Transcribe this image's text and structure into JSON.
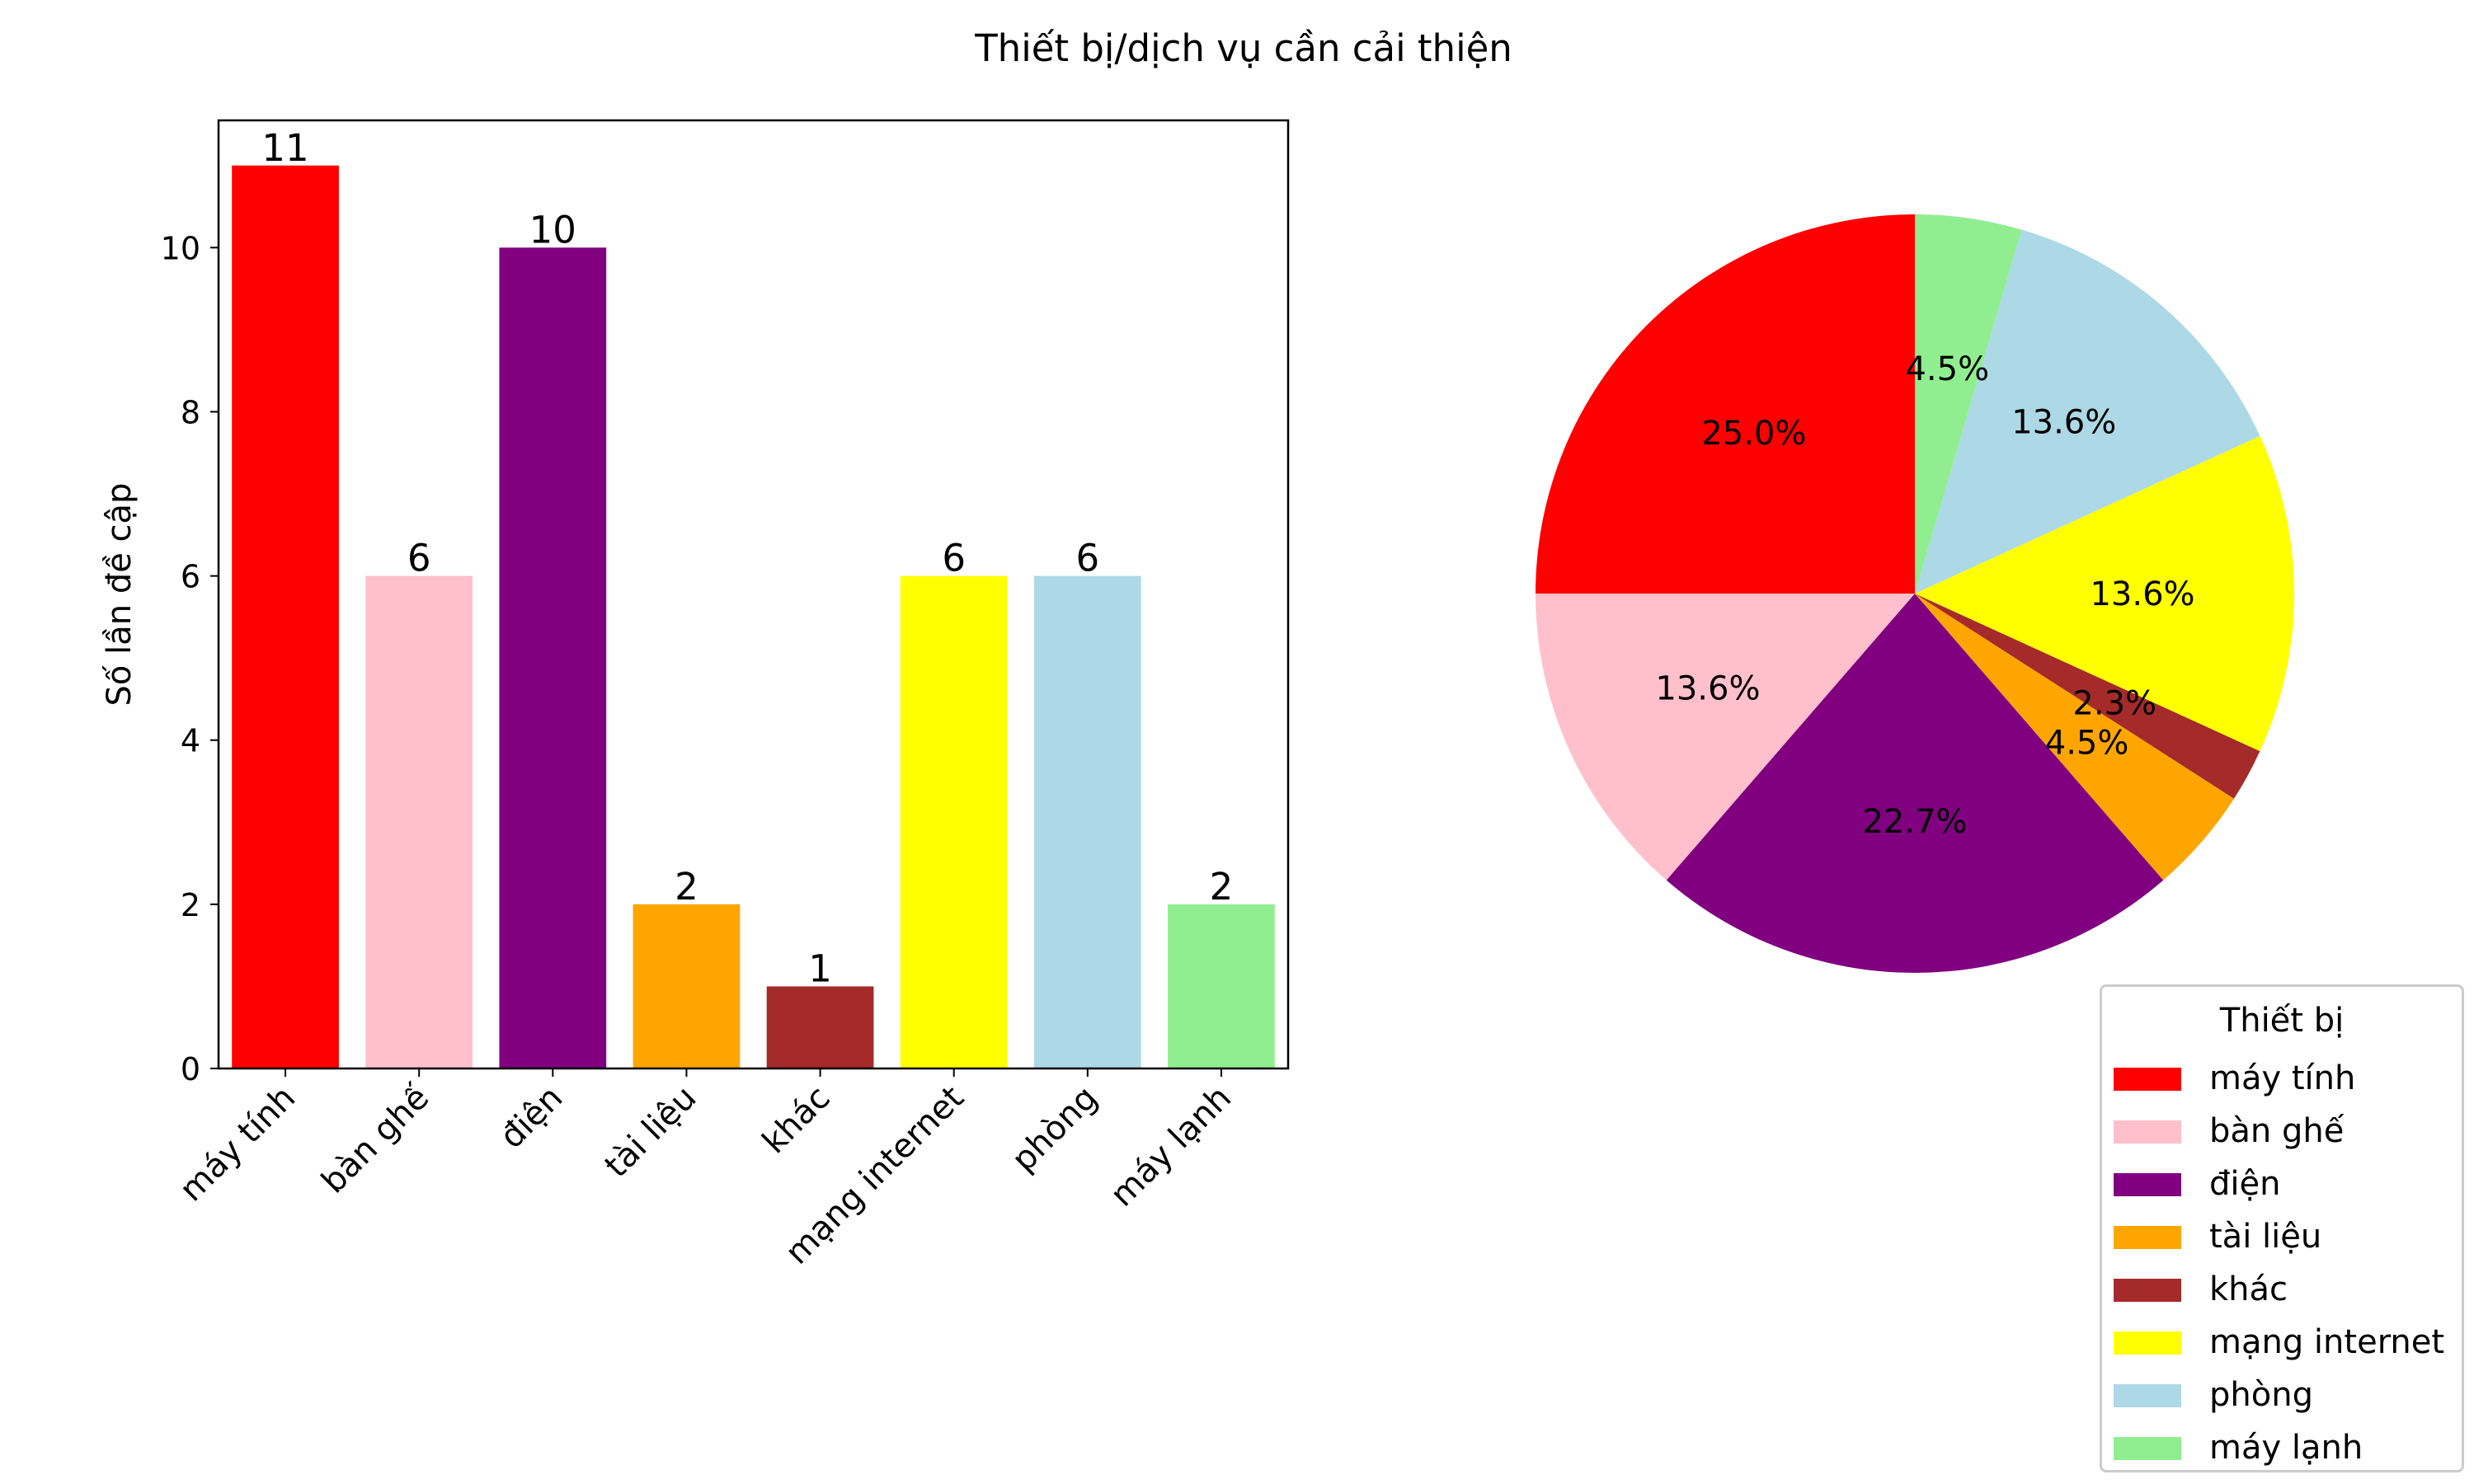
{
  "figure": {
    "title": "Thiết bị/dịch vụ cần cải thiện"
  },
  "chart_data": [
    {
      "type": "bar",
      "categories": [
        "máy tính",
        "bàn ghế",
        "điện",
        "tài liệu",
        "khác",
        "mạng internet",
        "phòng",
        "máy lạnh"
      ],
      "values": [
        11,
        6,
        10,
        2,
        1,
        6,
        6,
        2
      ],
      "colors": [
        "#ff0000",
        "#ffc0cb",
        "#800080",
        "#ffa500",
        "#a52a2a",
        "#ffff00",
        "#add8e6",
        "#90ee90"
      ],
      "xlabel": "",
      "ylabel": "Số lần đề cập",
      "ylim": [
        0,
        11.55
      ],
      "yticks": [
        0,
        2,
        4,
        6,
        8,
        10
      ],
      "data_labels": true,
      "grid": false
    },
    {
      "type": "pie",
      "labels": [
        "máy tính",
        "bàn ghế",
        "điện",
        "tài liệu",
        "khác",
        "mạng internet",
        "phòng",
        "máy lạnh"
      ],
      "values": [
        11,
        6,
        10,
        2,
        1,
        6,
        6,
        2
      ],
      "percent_labels": [
        "25.0%",
        "13.6%",
        "22.7%",
        "4.5%",
        "2.3%",
        "13.6%",
        "13.6%",
        "4.5%"
      ],
      "colors": [
        "#ff0000",
        "#ffc0cb",
        "#800080",
        "#ffa500",
        "#a52a2a",
        "#ffff00",
        "#add8e6",
        "#90ee90"
      ],
      "start_angle_deg": 90,
      "direction": "counterclockwise",
      "legend": {
        "title": "Thiết bị",
        "placement": "bottom-right",
        "items": [
          "máy tính",
          "bàn ghế",
          "điện",
          "tài liệu",
          "khác",
          "mạng internet",
          "phòng",
          "máy lạnh"
        ]
      }
    }
  ]
}
